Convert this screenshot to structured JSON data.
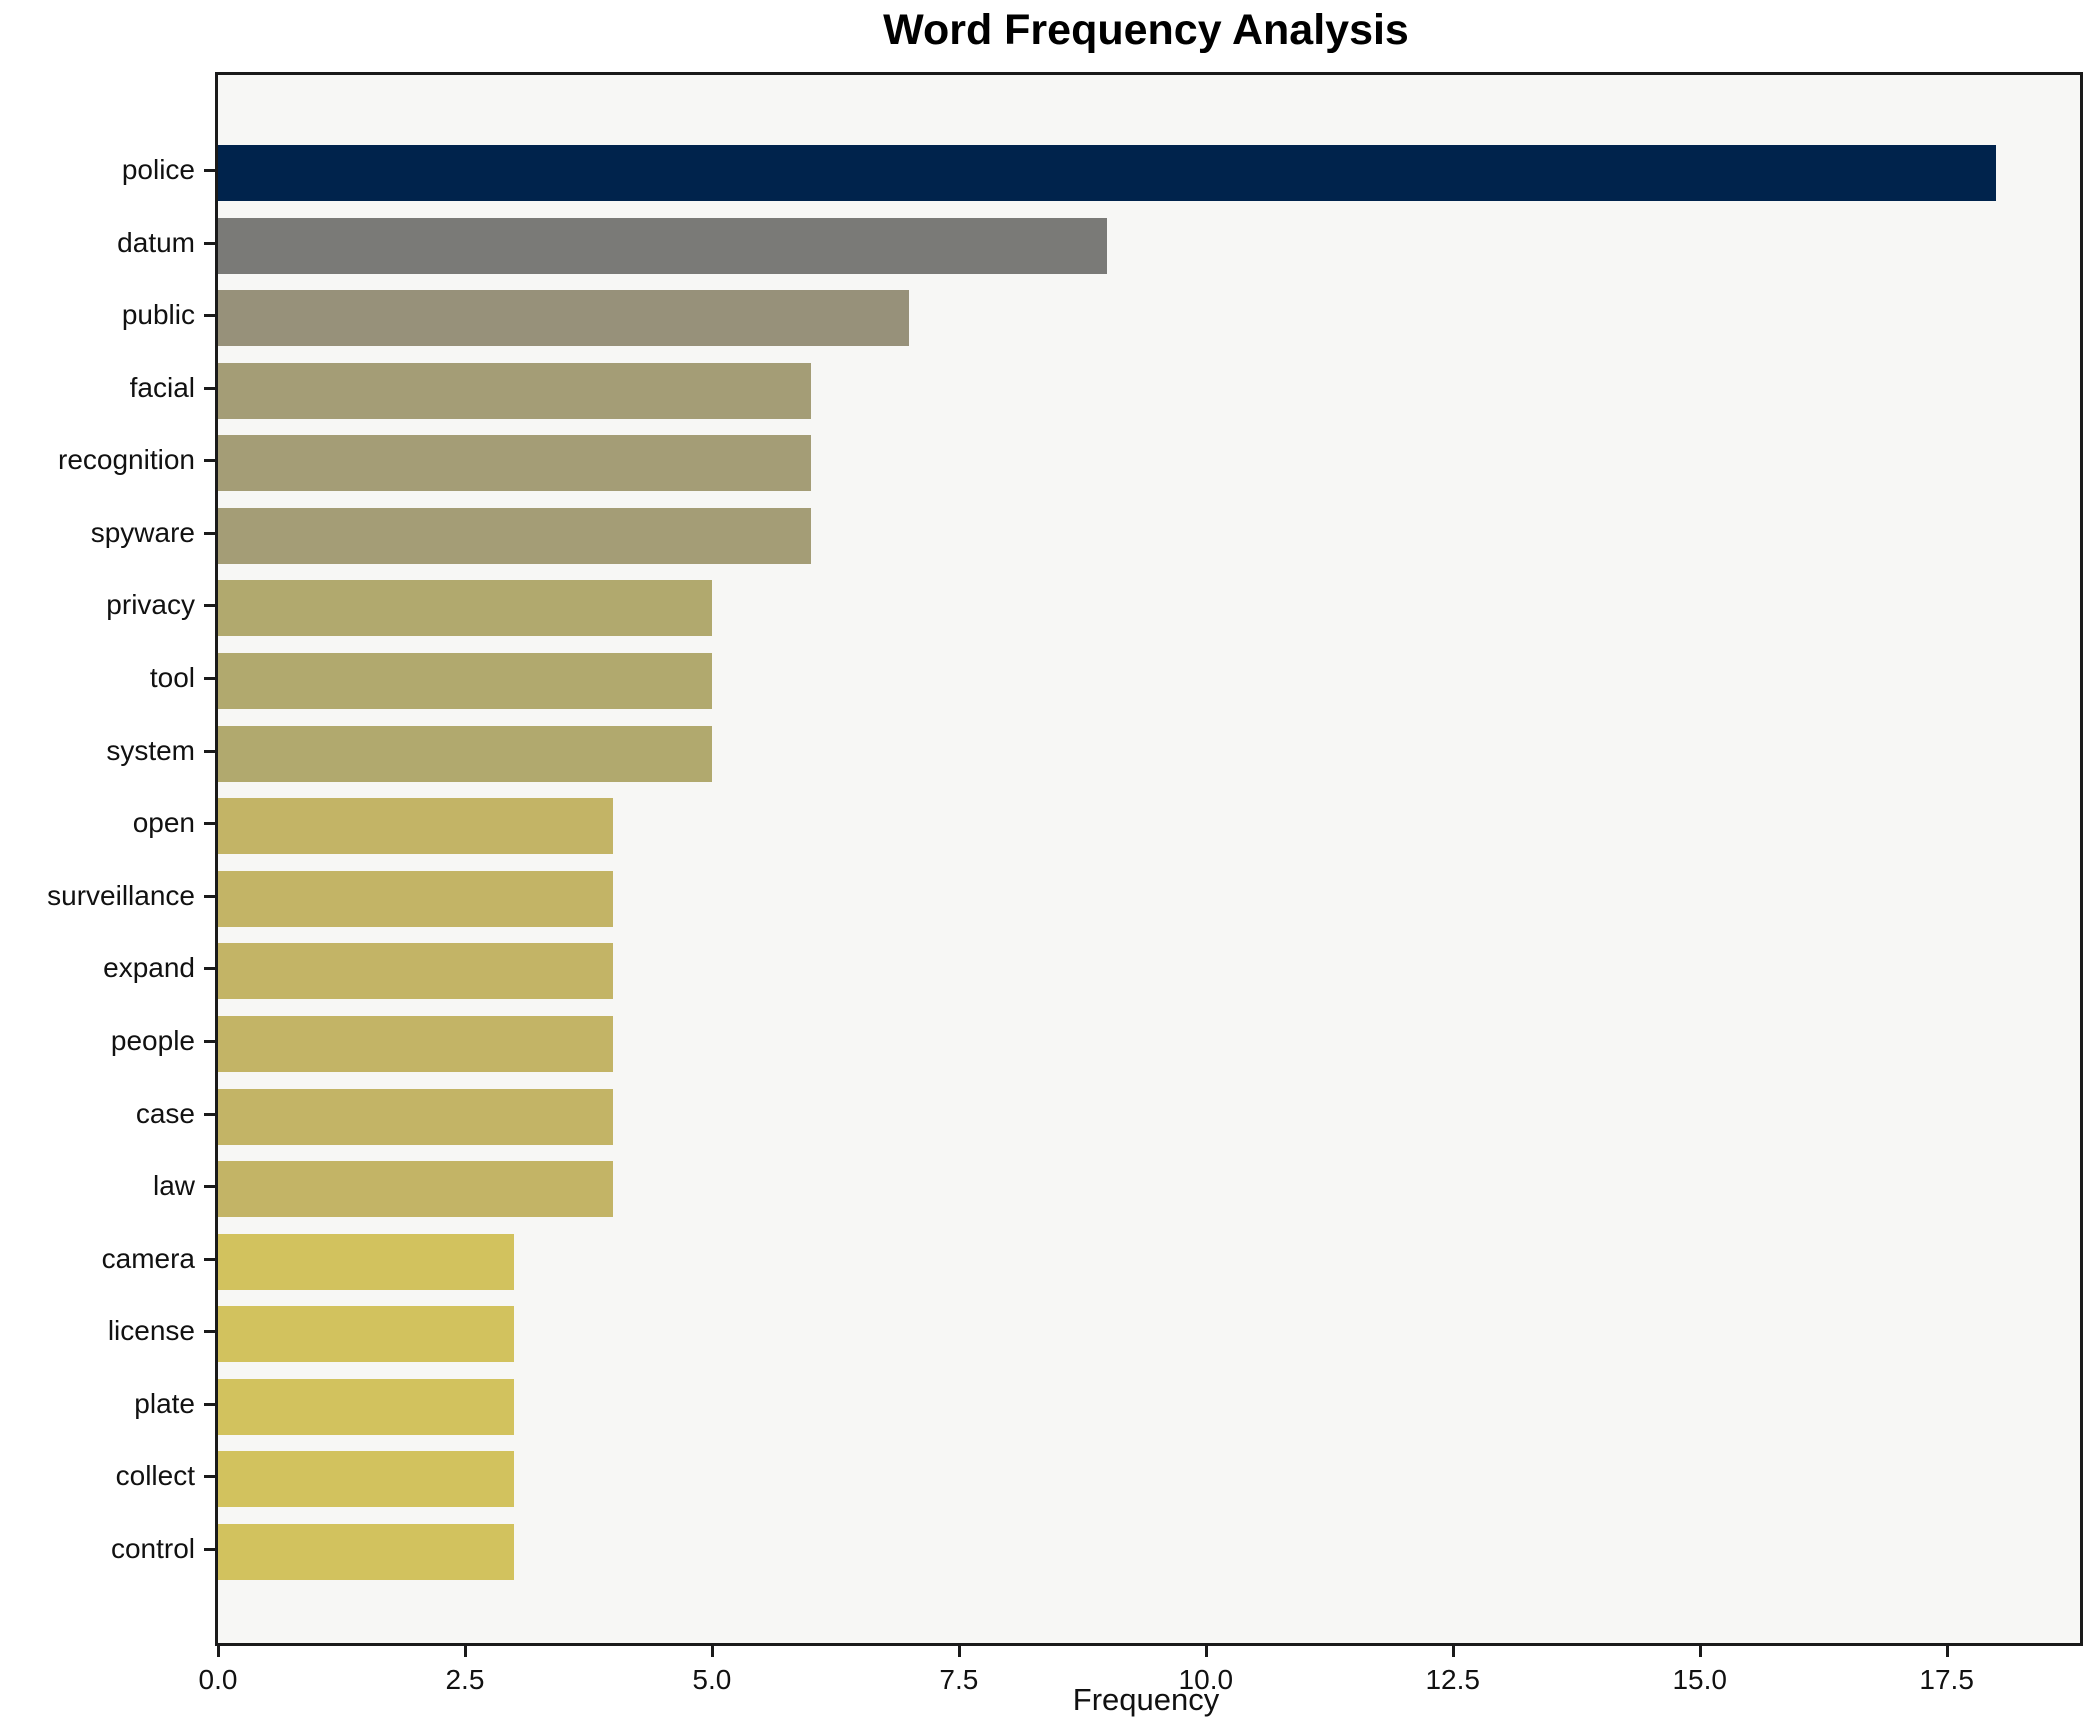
{
  "chart_data": {
    "type": "bar",
    "orientation": "horizontal",
    "title": "Word Frequency Analysis",
    "xlabel": "Frequency",
    "ylabel": "",
    "categories": [
      "police",
      "datum",
      "public",
      "facial",
      "recognition",
      "spyware",
      "privacy",
      "tool",
      "system",
      "open",
      "surveillance",
      "expand",
      "people",
      "case",
      "law",
      "camera",
      "license",
      "plate",
      "collect",
      "control"
    ],
    "values": [
      18,
      9,
      7,
      6,
      6,
      6,
      5,
      5,
      5,
      4,
      4,
      4,
      4,
      4,
      4,
      3,
      3,
      3,
      3,
      3
    ],
    "bar_colors": [
      "#00234c",
      "#7a7a77",
      "#97917a",
      "#a49d76",
      "#a49d76",
      "#a49d76",
      "#b1a96e",
      "#b1a96e",
      "#b1a96e",
      "#c3b466",
      "#c3b466",
      "#c3b466",
      "#c3b466",
      "#c3b466",
      "#c3b466",
      "#d2c25e",
      "#d2c25e",
      "#d2c25e",
      "#d2c25e",
      "#d2c25e"
    ],
    "xlim": [
      0,
      18.85
    ],
    "x_tick_labels": [
      "0.0",
      "2.5",
      "5.0",
      "7.5",
      "10.0",
      "12.5",
      "15.0",
      "17.5"
    ],
    "x_tick_values": [
      0,
      2.5,
      5,
      7.5,
      10,
      12.5,
      15,
      17.5
    ],
    "grid": false,
    "legend": null,
    "plot_background": "#f7f7f5",
    "figure_background": "#ffffff",
    "spine_color": "#1a1a1a",
    "text_color": "#111111"
  }
}
